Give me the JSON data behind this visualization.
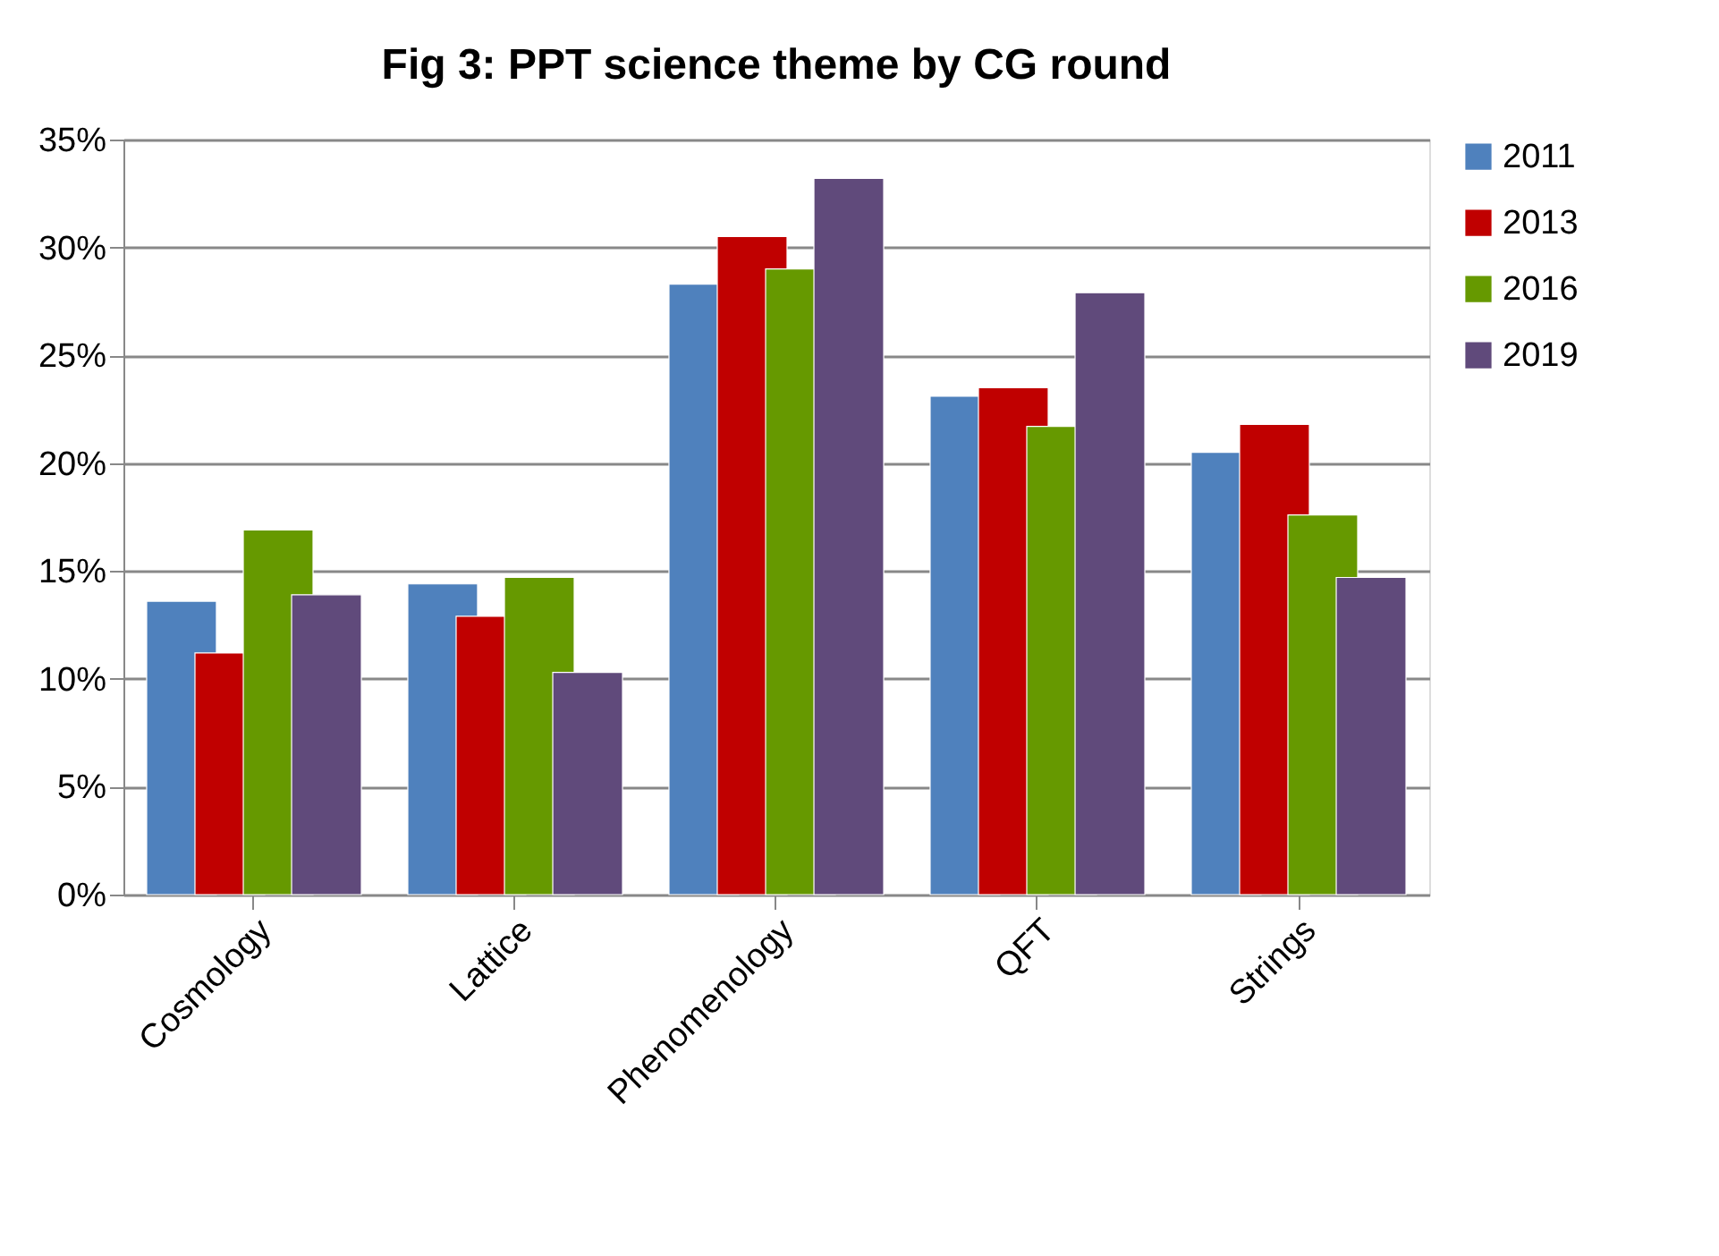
{
  "chart_data": {
    "type": "bar",
    "title": "Fig 3: PPT science theme by CG round",
    "categories": [
      "Cosmology",
      "Lattice",
      "Phenomenology",
      "QFT",
      "Strings"
    ],
    "series": [
      {
        "name": "2011",
        "color": "#4f81bd",
        "values": [
          13.6,
          14.4,
          28.3,
          23.1,
          20.5
        ]
      },
      {
        "name": "2013",
        "color": "#c00000",
        "values": [
          11.2,
          12.9,
          30.5,
          23.5,
          21.8
        ]
      },
      {
        "name": "2016",
        "color": "#669900",
        "values": [
          16.9,
          14.7,
          29.0,
          21.7,
          17.6
        ]
      },
      {
        "name": "2019",
        "color": "#604a7b",
        "values": [
          13.9,
          10.3,
          33.2,
          27.9,
          14.7
        ]
      }
    ],
    "ylim": [
      0,
      35
    ],
    "yticks": [
      {
        "value": 0,
        "label": "0%"
      },
      {
        "value": 5,
        "label": "5%"
      },
      {
        "value": 10,
        "label": "10%"
      },
      {
        "value": 15,
        "label": "15%"
      },
      {
        "value": 20,
        "label": "20%"
      },
      {
        "value": 25,
        "label": "25%"
      },
      {
        "value": 30,
        "label": "30%"
      },
      {
        "value": 35,
        "label": "35%"
      }
    ],
    "grid": "y",
    "legend": "right"
  }
}
